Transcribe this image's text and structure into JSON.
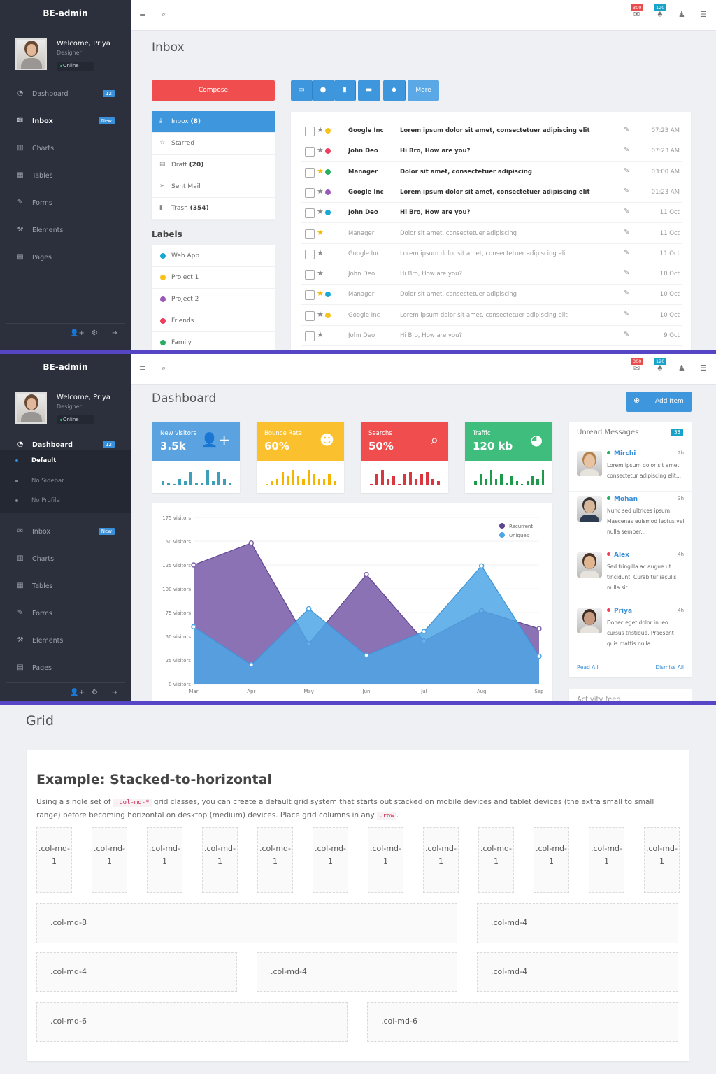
{
  "colors": {
    "sidebar": "#2b303c",
    "primary": "#3e97dc",
    "danger": "#f04e4e",
    "warning": "#fbc02d",
    "success": "#3ebd7c",
    "divider": "#5646c6"
  },
  "app": {
    "logo": "BE-admin",
    "welcome": "Welcome, Priya",
    "role": "Designer",
    "status": "Online"
  },
  "topbar": {
    "mail_badge": "300",
    "bell_badge": "120",
    "icons": [
      "menu-icon",
      "search-icon",
      "mail-icon",
      "bell-icon",
      "user-icon",
      "list-icon"
    ]
  },
  "inbox_screen": {
    "sidebar": [
      {
        "label": "Dashboard",
        "icon": "dashboard-icon",
        "badge": "12"
      },
      {
        "label": "Inbox",
        "icon": "envelope-icon",
        "badge": "New",
        "active": true
      },
      {
        "label": "Charts",
        "icon": "chart-icon"
      },
      {
        "label": "Tables",
        "icon": "table-icon"
      },
      {
        "label": "Forms",
        "icon": "edit-icon"
      },
      {
        "label": "Elements",
        "icon": "wrench-icon"
      },
      {
        "label": "Pages",
        "icon": "file-icon"
      }
    ],
    "title": "Inbox",
    "compose": "Compose",
    "folders": [
      {
        "label": "Inbox",
        "count": "(8)",
        "icon": "download-icon",
        "active": true
      },
      {
        "label": "Starred",
        "count": "",
        "icon": "star-icon"
      },
      {
        "label": "Draft",
        "count": "(20)",
        "icon": "file-icon"
      },
      {
        "label": "Sent Mail",
        "count": "",
        "icon": "send-icon"
      },
      {
        "label": "Trash",
        "count": "(354)",
        "icon": "trash-icon"
      }
    ],
    "labels_heading": "Labels",
    "labels": [
      {
        "label": "Web App",
        "color": "#17a9d6"
      },
      {
        "label": "Project 1",
        "color": "#f8c21c"
      },
      {
        "label": "Project 2",
        "color": "#9b59b6"
      },
      {
        "label": "Friends",
        "color": "#ef3f5d"
      },
      {
        "label": "Family",
        "color": "#27ae60"
      }
    ],
    "toolbar": {
      "icons": [
        "inbox-icon",
        "alert-icon",
        "trash-icon",
        "folder-icon",
        "tag-icon"
      ],
      "more": "More"
    },
    "mails": [
      {
        "sender": "Google Inc",
        "subject": "Lorem ipsum dolor sit amet, consectetuer adipiscing elit",
        "time": "07:23 AM",
        "unread": true,
        "starred": false,
        "label": "#f8c21c"
      },
      {
        "sender": "John Deo",
        "subject": "Hi Bro, How are you?",
        "time": "07:23 AM",
        "unread": true,
        "starred": false,
        "label": "#ef3f5d"
      },
      {
        "sender": "Manager",
        "subject": "Dolor sit amet, consectetuer adipiscing",
        "time": "03:00 AM",
        "unread": true,
        "starred": true,
        "label": "#27ae60"
      },
      {
        "sender": "Google Inc",
        "subject": "Lorem ipsum dolor sit amet, consectetuer adipiscing elit",
        "time": "01:23 AM",
        "unread": true,
        "starred": false,
        "label": "#9b59b6"
      },
      {
        "sender": "John Deo",
        "subject": "Hi Bro, How are you?",
        "time": "11 Oct",
        "unread": true,
        "starred": false,
        "label": "#17a9d6"
      },
      {
        "sender": "Manager",
        "subject": "Dolor sit amet, consectetuer adipiscing",
        "time": "11 Oct",
        "unread": false,
        "starred": true,
        "label": ""
      },
      {
        "sender": "Google Inc",
        "subject": "Lorem ipsum dolor sit amet, consectetuer adipiscing elit",
        "time": "11 Oct",
        "unread": false,
        "starred": false,
        "label": ""
      },
      {
        "sender": "John Deo",
        "subject": "Hi Bro, How are you?",
        "time": "10 Oct",
        "unread": false,
        "starred": false,
        "label": ""
      },
      {
        "sender": "Manager",
        "subject": "Dolor sit amet, consectetuer adipiscing",
        "time": "10 Oct",
        "unread": false,
        "starred": true,
        "label": "#17a9d6"
      },
      {
        "sender": "Google Inc",
        "subject": "Lorem ipsum dolor sit amet, consectetuer adipiscing elit",
        "time": "10 Oct",
        "unread": false,
        "starred": false,
        "label": "#f8c21c"
      },
      {
        "sender": "John Deo",
        "subject": "Hi Bro, How are you?",
        "time": "9 Oct",
        "unread": false,
        "starred": false,
        "label": ""
      }
    ]
  },
  "dashboard_screen": {
    "sidebar": [
      {
        "label": "Dashboard",
        "icon": "dashboard-icon",
        "badge": "12",
        "active": true,
        "sub": [
          {
            "label": "Default",
            "active": true
          },
          {
            "label": "No Sidebar"
          },
          {
            "label": "No Profile"
          }
        ]
      },
      {
        "label": "Inbox",
        "icon": "envelope-icon",
        "badge": "New"
      },
      {
        "label": "Charts",
        "icon": "chart-icon"
      },
      {
        "label": "Tables",
        "icon": "table-icon"
      },
      {
        "label": "Forms",
        "icon": "edit-icon"
      },
      {
        "label": "Elements",
        "icon": "wrench-icon"
      },
      {
        "label": "Pages",
        "icon": "file-icon"
      }
    ],
    "title": "Dashboard",
    "add_item": "Add Item",
    "stats": [
      {
        "title": "New visitors",
        "value": "3.5k",
        "icon": "user-plus-icon",
        "color": "#5aa3e0",
        "bar": "#3e9fb8",
        "spark": [
          2,
          1,
          0.5,
          3,
          2,
          6,
          1,
          1,
          7,
          2,
          6,
          3,
          1
        ]
      },
      {
        "title": "Bounce Rate",
        "value": "60%",
        "icon": "users-icon",
        "color": "#fbc02d",
        "bar": "#f4b400",
        "spark": [
          0.5,
          2,
          3,
          6,
          4,
          7,
          4,
          3,
          7,
          5,
          3,
          3,
          5,
          2
        ]
      },
      {
        "title": "Searchs",
        "value": "50%",
        "icon": "search-icon",
        "color": "#f04e4e",
        "bar": "#d9363e",
        "spark": [
          0.5,
          5,
          7,
          3,
          4,
          0.5,
          5,
          6,
          3,
          5,
          6,
          3,
          2
        ]
      },
      {
        "title": "Traffic",
        "value": "120 kb",
        "icon": "globe-icon",
        "color": "#3ebd7c",
        "bar": "#1f9a4b",
        "spark": [
          2,
          5,
          3,
          7,
          3,
          5,
          1,
          4,
          2,
          0.5,
          2,
          4,
          3,
          7
        ]
      }
    ],
    "unread": {
      "title": "Unread Messages",
      "count": "33",
      "read_all": "Read All",
      "dismiss_all": "Dismiss All",
      "messages": [
        {
          "name": "Mirchi",
          "time": "2h",
          "text": "Lorem ipsum dolor sit amet, consectetur adipiscing elit...",
          "status": "#27ae60"
        },
        {
          "name": "Mohan",
          "time": "3h",
          "text": "Nunc sed ultrices ipsum. Maecenas euismod lectus vel nulla semper...",
          "status": "#27ae60"
        },
        {
          "name": "Alex",
          "time": "4h",
          "text": "Sed fringilla ac augue ut tincidunt. Curabitur iaculis nulla sit...",
          "status": "#ef3f5d"
        },
        {
          "name": "Priya",
          "time": "4h",
          "text": "Donec eget dolor in leo cursus tristique. Praesent quis mattis nulla....",
          "status": "#ef3f5d"
        }
      ]
    },
    "activity_title": "Activity feed"
  },
  "chart_data": {
    "type": "area",
    "categories": [
      "Mar",
      "Apr",
      "May",
      "Jun",
      "Jul",
      "Aug",
      "Sep"
    ],
    "series": [
      {
        "name": "Recurrent",
        "color": "#7e63ad",
        "values": [
          125,
          148,
          42,
          115,
          45,
          77,
          58
        ]
      },
      {
        "name": "Uniques",
        "color": "#4ea6e6",
        "values": [
          60,
          20,
          79,
          30,
          55,
          124,
          29
        ]
      }
    ],
    "yticks": [
      "0 visitors",
      "25 visitors",
      "50 visitors",
      "75 visitors",
      "100 visitors",
      "125 visitors",
      "150 visitors",
      "175 visitors"
    ],
    "ylim": [
      0,
      175
    ],
    "legend": "top-right",
    "grid": true
  },
  "grid_screen": {
    "title": "Grid",
    "heading": "Example: Stacked-to-horizontal",
    "para_1": "Using a single set of ",
    "code_1": ".col-md-*",
    "para_2": " grid classes, you can create a default grid system that starts out stacked on mobile devices and tablet devices (the extra small to small range) before becoming horizontal on desktop (medium) devices. Place grid columns in any ",
    "code_2": ".row",
    "para_3": ".",
    "col1": ".col-md-1",
    "rows": [
      [
        ".col-md-8",
        ".col-md-4"
      ],
      [
        ".col-md-4",
        ".col-md-4",
        ".col-md-4"
      ],
      [
        ".col-md-6",
        ".col-md-6"
      ]
    ]
  }
}
